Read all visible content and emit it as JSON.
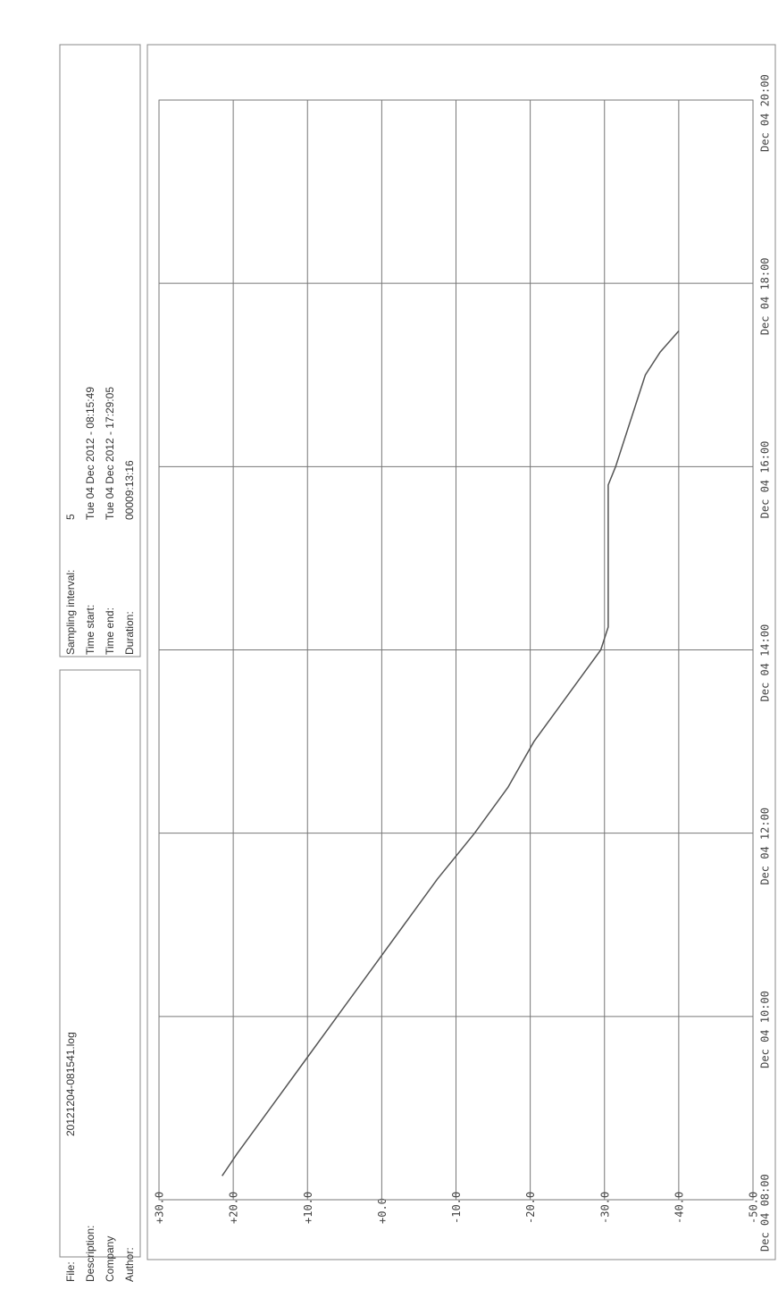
{
  "info": {
    "rows": [
      [
        "File:",
        "20121204-081541.log"
      ],
      [
        "Description:"
      ],
      [
        "Company"
      ],
      [
        "Author:"
      ]
    ],
    "rows2": [
      [
        "Sampling interval:",
        "5"
      ],
      [
        "Time start:",
        "Tue 04 Dec 2012 - 08:15:49"
      ],
      [
        "Time end:",
        "Tue 04 Dec 2012 - 17:29:05"
      ],
      [
        "Duration:",
        "00009:13:16"
      ]
    ]
  },
  "chart_data": {
    "type": "line",
    "color": "#555555",
    "grid": true,
    "x": [
      8.26,
      8.5,
      9,
      9.5,
      10,
      10.5,
      11,
      11.5,
      12,
      12.5,
      13,
      13.5,
      14,
      14.25,
      14.5,
      15,
      15.5,
      15.8,
      16,
      16.5,
      17,
      17.25,
      17.48
    ],
    "values": [
      21.5,
      19.5,
      15,
      10.5,
      6,
      1.5,
      -3,
      -7.5,
      -12.5,
      -17,
      -20.5,
      -25,
      -29.5,
      -30.5,
      -30.5,
      -30.5,
      -30.5,
      -30.5,
      -31.5,
      -33.5,
      -35.5,
      -37.5,
      -40
    ],
    "xlim": [
      8,
      20
    ],
    "xticks": [
      {
        "value": 8,
        "label": "Dec 04 08:00"
      },
      {
        "value": 10,
        "label": "Dec 04 10:00"
      },
      {
        "value": 12,
        "label": "Dec 04 12:00"
      },
      {
        "value": 14,
        "label": "Dec 04 14:00"
      },
      {
        "value": 16,
        "label": "Dec 04 16:00"
      },
      {
        "value": 18,
        "label": "Dec 04 18:00"
      },
      {
        "value": 20,
        "label": "Dec 04 20:00"
      }
    ],
    "ylim": [
      -50,
      30
    ],
    "yticks": [
      {
        "value": 30,
        "label": "+30.0"
      },
      {
        "value": 20,
        "label": "+20.0"
      },
      {
        "value": 10,
        "label": "+10.0"
      },
      {
        "value": 0,
        "label": "+0.0"
      },
      {
        "value": -10,
        "label": "-10.0"
      },
      {
        "value": -20,
        "label": "-20.0"
      },
      {
        "value": -30,
        "label": "-30.0"
      },
      {
        "value": -40,
        "label": "-40.0"
      },
      {
        "value": -50,
        "label": "-50.0"
      }
    ]
  }
}
